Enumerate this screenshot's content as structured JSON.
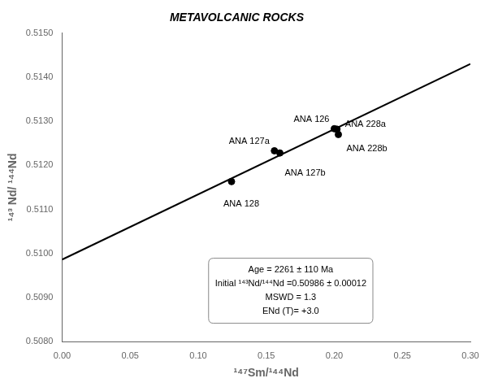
{
  "chart_data": {
    "type": "scatter",
    "title": "METAVOLCANIC ROCKS",
    "xlabel": "¹⁴⁷Sm/¹⁴⁴Nd",
    "ylabel": "¹⁴³ Nd/ ¹⁴⁴Nd",
    "xlim": [
      0.0,
      0.3
    ],
    "ylim": [
      0.508,
      0.515
    ],
    "xticks": [
      {
        "value": 0,
        "label": "0.00"
      },
      0.05,
      {
        "value": 0.1,
        "label": "0.10"
      },
      0.15,
      {
        "value": 0.2,
        "label": "0.20"
      },
      0.25,
      {
        "value": 0.3,
        "label": "0.30"
      }
    ],
    "yticks": [
      {
        "value": 0.508,
        "label": "0.5080"
      },
      {
        "value": 0.509,
        "label": "0.5090"
      },
      {
        "value": 0.51,
        "label": "0.5100"
      },
      {
        "value": 0.511,
        "label": "0.5110"
      },
      {
        "value": 0.512,
        "label": "0.5120"
      },
      {
        "value": 0.513,
        "label": "0.5130"
      },
      {
        "value": 0.514,
        "label": "0.5140"
      },
      {
        "value": 0.515,
        "label": "0.5150"
      }
    ],
    "grid": false,
    "series": [
      {
        "type": "line",
        "color": "#000000",
        "line_style": "solid",
        "x": [
          0.0,
          0.3
        ],
        "values": [
          0.50986,
          0.5143
        ]
      },
      {
        "type": "scatter",
        "color": "#000000",
        "marker": "circle",
        "x": [
          0.1245,
          0.16,
          0.156,
          0.2,
          0.202,
          0.203
        ],
        "values": [
          0.51163,
          0.51228,
          0.51233,
          0.51283,
          0.51282,
          0.5127
        ],
        "labels": [
          "ANA 128",
          "ANA 127b",
          "ANA 127a",
          "ANA 126",
          "ANA 228a",
          "ANA 228b"
        ]
      }
    ],
    "annotations": [
      "Age = 2261 ± 110 Ma",
      "Initial ¹⁴³Nd/¹⁴⁴Nd =0.50986 ± 0.00012",
      "MSWD = 1.3",
      "ENd (T)= +3.0"
    ]
  }
}
